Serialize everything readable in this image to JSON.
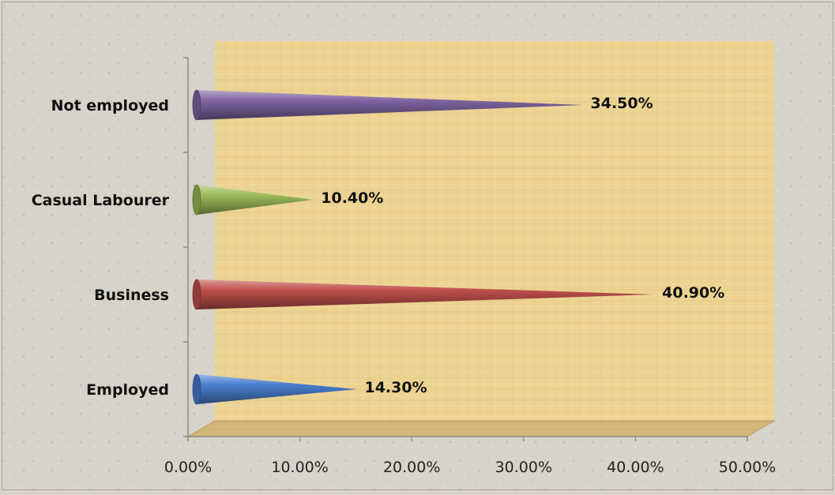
{
  "chart_data": {
    "type": "bar",
    "orientation": "horizontal",
    "bar_shape": "cone",
    "categories": [
      "Employed",
      "Business",
      "Casual Labourer",
      "Not employed"
    ],
    "values": [
      14.3,
      40.9,
      10.4,
      34.5
    ],
    "data_labels": [
      "14.30%",
      "40.90%",
      "10.40%",
      "34.50%"
    ],
    "colors": [
      "#4a7fd0",
      "#c0504d",
      "#9bbb59",
      "#8064a2"
    ],
    "xlim": [
      0,
      50
    ],
    "xticks": [
      0,
      10,
      20,
      30,
      40,
      50
    ],
    "xtick_labels": [
      "0.00%",
      "10.00%",
      "20.00%",
      "30.00%",
      "40.00%",
      "50.00%"
    ],
    "title": "",
    "xlabel": "",
    "ylabel": "",
    "grid": false,
    "legend": "none",
    "background": "papyrus"
  }
}
